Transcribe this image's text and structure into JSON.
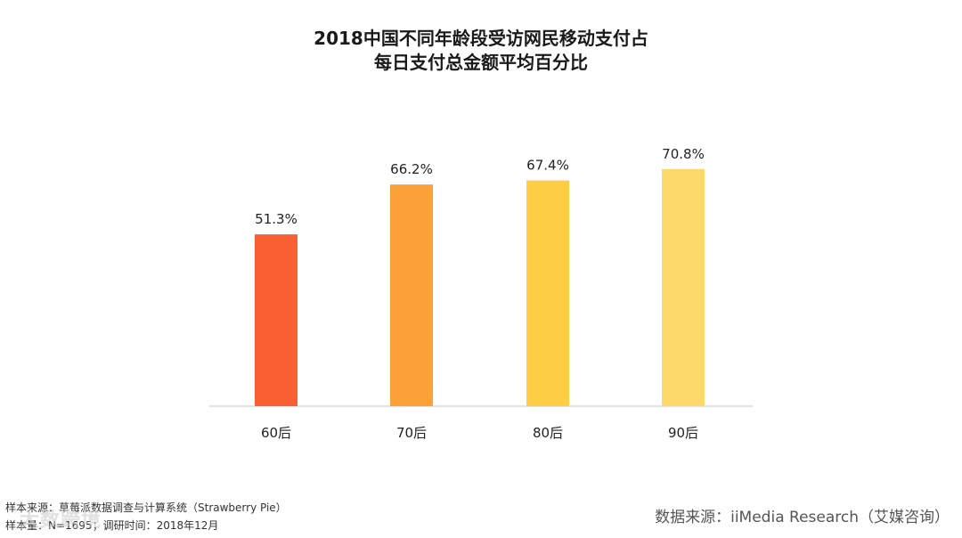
{
  "chart_data": {
    "type": "bar",
    "title_line1": "2018中国不同年龄段受访网民移动支付占",
    "title_line2": "每日支付总金额平均百分比",
    "categories": [
      "60后",
      "70后",
      "80后",
      "90后"
    ],
    "values": [
      51.3,
      66.2,
      67.4,
      70.8
    ],
    "value_labels": [
      "51.3%",
      "66.2%",
      "67.4%",
      "70.8%"
    ],
    "colors": [
      "#fa5f34",
      "#fba138",
      "#fdcd45",
      "#fdd96b"
    ],
    "ylim": [
      0,
      100
    ],
    "xlabel": "",
    "ylabel": "",
    "grid": false,
    "legend": "none"
  },
  "footer": {
    "sample_source": "样本来源：草莓派数据调查与计算系统（Strawberry Pie）",
    "sample_size": "样本量：N=1695；调研时间：2018年12月",
    "data_source": "数据来源：iiMedia Research（艾媒咨询）",
    "watermark": "大数跨境"
  }
}
